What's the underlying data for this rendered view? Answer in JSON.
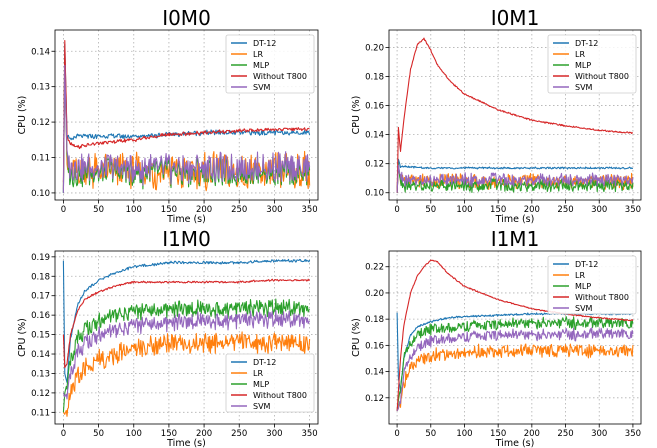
{
  "figure": {
    "colors": {
      "DT-12": "#1f77b4",
      "LR": "#ff7f0e",
      "MLP": "#2ca02c",
      "Without T800": "#d62728",
      "SVM": "#9467bd"
    }
  },
  "chart_data": [
    {
      "type": "line",
      "title": "I0M0",
      "xlabel": "Time (s)",
      "ylabel": "CPU (%)",
      "xlim": [
        -12,
        362
      ],
      "ylim": [
        0.098,
        0.146
      ],
      "xticks": [
        "0",
        "50",
        "100",
        "150",
        "200",
        "250",
        "300",
        "350"
      ],
      "yticks": [
        "0.10",
        "0.11",
        "0.12",
        "0.13",
        "0.14"
      ],
      "grid": true,
      "legend_position": "top-right",
      "series": [
        {
          "name": "DT-12",
          "x": [
            0,
            2,
            5,
            10,
            20,
            50,
            100,
            150,
            200,
            250,
            300,
            350
          ],
          "y": [
            0.1,
            0.142,
            0.116,
            0.115,
            0.116,
            0.116,
            0.116,
            0.1165,
            0.117,
            0.117,
            0.117,
            0.117
          ]
        },
        {
          "name": "LR",
          "x": [
            0,
            2,
            5,
            10,
            50,
            100,
            150,
            200,
            250,
            300,
            350
          ],
          "y": [
            0.101,
            0.137,
            0.108,
            0.106,
            0.106,
            0.106,
            0.106,
            0.106,
            0.106,
            0.106,
            0.106
          ]
        },
        {
          "name": "MLP",
          "x": [
            0,
            2,
            5,
            10,
            50,
            100,
            150,
            200,
            250,
            300,
            350
          ],
          "y": [
            0.1,
            0.138,
            0.108,
            0.106,
            0.106,
            0.106,
            0.106,
            0.106,
            0.106,
            0.106,
            0.106
          ]
        },
        {
          "name": "Without T800",
          "x": [
            0,
            2,
            5,
            10,
            20,
            50,
            100,
            150,
            200,
            250,
            300,
            350
          ],
          "y": [
            0.103,
            0.143,
            0.116,
            0.114,
            0.113,
            0.114,
            0.115,
            0.1165,
            0.117,
            0.1175,
            0.118,
            0.118
          ]
        },
        {
          "name": "SVM",
          "x": [
            0,
            2,
            5,
            10,
            50,
            100,
            150,
            200,
            250,
            300,
            350
          ],
          "y": [
            0.1,
            0.136,
            0.109,
            0.108,
            0.107,
            0.107,
            0.107,
            0.107,
            0.107,
            0.107,
            0.107
          ]
        }
      ]
    },
    {
      "type": "line",
      "title": "I0M1",
      "xlabel": "Time (s)",
      "ylabel": "CPU (%)",
      "xlim": [
        -12,
        362
      ],
      "ylim": [
        0.095,
        0.212
      ],
      "xticks": [
        "0",
        "50",
        "100",
        "150",
        "200",
        "250",
        "300",
        "350"
      ],
      "yticks": [
        "0.10",
        "0.12",
        "0.14",
        "0.16",
        "0.18",
        "0.20"
      ],
      "grid": true,
      "legend_position": "top-right",
      "series": [
        {
          "name": "DT-12",
          "x": [
            0,
            2,
            5,
            10,
            50,
            100,
            150,
            200,
            250,
            300,
            350
          ],
          "y": [
            0.1,
            0.123,
            0.118,
            0.118,
            0.117,
            0.117,
            0.117,
            0.117,
            0.117,
            0.117,
            0.117
          ]
        },
        {
          "name": "LR",
          "x": [
            0,
            2,
            5,
            10,
            50,
            100,
            150,
            200,
            250,
            300,
            350
          ],
          "y": [
            0.1,
            0.118,
            0.109,
            0.108,
            0.108,
            0.108,
            0.108,
            0.108,
            0.108,
            0.108,
            0.108
          ]
        },
        {
          "name": "MLP",
          "x": [
            0,
            2,
            5,
            10,
            50,
            100,
            150,
            200,
            250,
            300,
            350
          ],
          "y": [
            0.1,
            0.12,
            0.106,
            0.105,
            0.105,
            0.105,
            0.105,
            0.105,
            0.105,
            0.105,
            0.105
          ]
        },
        {
          "name": "Without T800",
          "x": [
            0,
            2,
            5,
            10,
            20,
            30,
            40,
            50,
            60,
            80,
            100,
            150,
            200,
            250,
            300,
            350
          ],
          "y": [
            0.1,
            0.145,
            0.128,
            0.15,
            0.185,
            0.202,
            0.206,
            0.198,
            0.188,
            0.176,
            0.168,
            0.157,
            0.15,
            0.146,
            0.143,
            0.141
          ]
        },
        {
          "name": "SVM",
          "x": [
            0,
            2,
            5,
            10,
            50,
            100,
            150,
            200,
            250,
            300,
            350
          ],
          "y": [
            0.1,
            0.119,
            0.11,
            0.109,
            0.109,
            0.109,
            0.109,
            0.109,
            0.109,
            0.109,
            0.109
          ]
        }
      ]
    },
    {
      "type": "line",
      "title": "I1M0",
      "xlabel": "Time (s)",
      "ylabel": "CPU (%)",
      "xlim": [
        -12,
        362
      ],
      "ylim": [
        0.104,
        0.193
      ],
      "xticks": [
        "0",
        "50",
        "100",
        "150",
        "200",
        "250",
        "300",
        "350"
      ],
      "yticks": [
        "0.11",
        "0.12",
        "0.13",
        "0.14",
        "0.15",
        "0.16",
        "0.17",
        "0.18",
        "0.19"
      ],
      "grid": true,
      "legend_position": "bottom-right",
      "series": [
        {
          "name": "DT-12",
          "x": [
            0,
            2,
            5,
            10,
            20,
            30,
            50,
            75,
            100,
            150,
            200,
            250,
            300,
            350
          ],
          "y": [
            0.188,
            0.13,
            0.125,
            0.148,
            0.165,
            0.172,
            0.178,
            0.182,
            0.185,
            0.187,
            0.187,
            0.187,
            0.188,
            0.188
          ]
        },
        {
          "name": "LR",
          "x": [
            0,
            2,
            5,
            10,
            20,
            30,
            50,
            75,
            100,
            150,
            200,
            250,
            300,
            350
          ],
          "y": [
            0.11,
            0.109,
            0.112,
            0.12,
            0.128,
            0.133,
            0.137,
            0.14,
            0.143,
            0.145,
            0.145,
            0.146,
            0.145,
            0.145
          ]
        },
        {
          "name": "MLP",
          "x": [
            0,
            2,
            5,
            10,
            20,
            30,
            50,
            75,
            100,
            150,
            200,
            250,
            300,
            350
          ],
          "y": [
            0.11,
            0.12,
            0.125,
            0.137,
            0.147,
            0.152,
            0.157,
            0.16,
            0.162,
            0.163,
            0.163,
            0.163,
            0.164,
            0.164
          ]
        },
        {
          "name": "Without T800",
          "x": [
            0,
            2,
            5,
            10,
            20,
            30,
            50,
            75,
            100,
            150,
            200,
            250,
            300,
            350
          ],
          "y": [
            0.15,
            0.133,
            0.135,
            0.15,
            0.162,
            0.168,
            0.172,
            0.175,
            0.177,
            0.177,
            0.177,
            0.177,
            0.178,
            0.178
          ]
        },
        {
          "name": "SVM",
          "x": [
            0,
            2,
            5,
            10,
            20,
            30,
            50,
            75,
            100,
            150,
            200,
            250,
            300,
            350
          ],
          "y": [
            0.12,
            0.118,
            0.12,
            0.13,
            0.14,
            0.145,
            0.15,
            0.152,
            0.155,
            0.156,
            0.157,
            0.157,
            0.158,
            0.158
          ]
        }
      ]
    },
    {
      "type": "line",
      "title": "I1M1",
      "xlabel": "Time (s)",
      "ylabel": "CPU (%)",
      "xlim": [
        -12,
        362
      ],
      "ylim": [
        0.1,
        0.232
      ],
      "xticks": [
        "0",
        "50",
        "100",
        "150",
        "200",
        "250",
        "300",
        "350"
      ],
      "yticks": [
        "0.12",
        "0.14",
        "0.16",
        "0.18",
        "0.20",
        "0.22"
      ],
      "grid": true,
      "legend_position": "top-right",
      "series": [
        {
          "name": "DT-12",
          "x": [
            0,
            2,
            5,
            10,
            20,
            30,
            50,
            75,
            100,
            150,
            200,
            250,
            300,
            350
          ],
          "y": [
            0.185,
            0.135,
            0.125,
            0.15,
            0.168,
            0.174,
            0.178,
            0.181,
            0.182,
            0.183,
            0.184,
            0.184,
            0.184,
            0.184
          ]
        },
        {
          "name": "LR",
          "x": [
            0,
            2,
            5,
            10,
            20,
            30,
            50,
            75,
            100,
            150,
            200,
            250,
            300,
            350
          ],
          "y": [
            0.11,
            0.112,
            0.118,
            0.132,
            0.143,
            0.148,
            0.152,
            0.154,
            0.155,
            0.156,
            0.156,
            0.156,
            0.156,
            0.156
          ]
        },
        {
          "name": "MLP",
          "x": [
            0,
            2,
            5,
            10,
            20,
            30,
            50,
            75,
            100,
            150,
            200,
            250,
            300,
            350
          ],
          "y": [
            0.11,
            0.118,
            0.128,
            0.15,
            0.162,
            0.168,
            0.172,
            0.174,
            0.175,
            0.176,
            0.177,
            0.177,
            0.177,
            0.177
          ]
        },
        {
          "name": "Without T800",
          "x": [
            0,
            2,
            5,
            10,
            20,
            30,
            40,
            50,
            60,
            75,
            100,
            150,
            200,
            250,
            300,
            350
          ],
          "y": [
            0.11,
            0.125,
            0.15,
            0.175,
            0.2,
            0.213,
            0.22,
            0.225,
            0.224,
            0.215,
            0.205,
            0.195,
            0.188,
            0.184,
            0.181,
            0.179
          ]
        },
        {
          "name": "SVM",
          "x": [
            0,
            2,
            5,
            10,
            20,
            30,
            50,
            75,
            100,
            150,
            200,
            250,
            300,
            350
          ],
          "y": [
            0.11,
            0.112,
            0.12,
            0.138,
            0.152,
            0.158,
            0.163,
            0.166,
            0.167,
            0.168,
            0.168,
            0.168,
            0.169,
            0.169
          ]
        }
      ]
    }
  ]
}
